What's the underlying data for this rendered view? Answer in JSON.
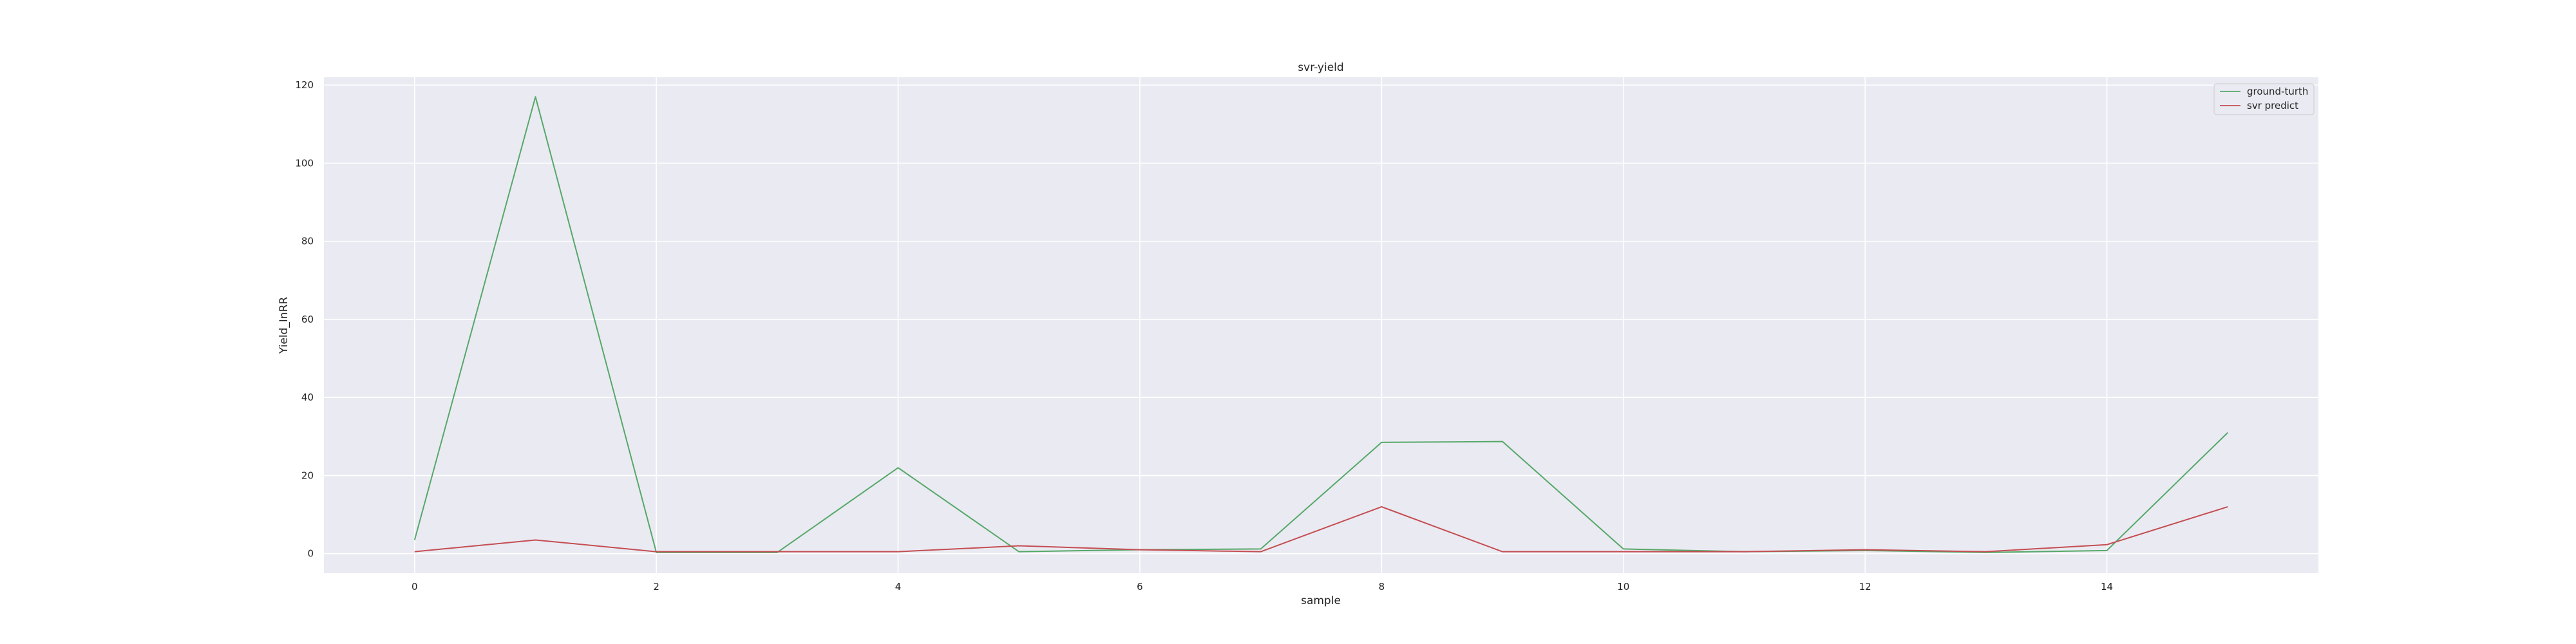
{
  "chart_data": {
    "type": "line",
    "title": "svr-yield",
    "xlabel": "sample",
    "ylabel": "Yield_InRR",
    "x": [
      0,
      1,
      2,
      3,
      4,
      5,
      6,
      7,
      8,
      9,
      10,
      11,
      12,
      13,
      14,
      15
    ],
    "xlim": [
      -0.75,
      15.75
    ],
    "ylim": [
      -5,
      122
    ],
    "xticks": [
      "0",
      "2",
      "4",
      "6",
      "8",
      "10",
      "12",
      "14"
    ],
    "yticks": [
      "0",
      "20",
      "40",
      "60",
      "80",
      "100",
      "120"
    ],
    "grid": true,
    "legend_position": "top-right",
    "background_color": "#eaeaf2",
    "series": [
      {
        "name": "ground-turth",
        "color": "#55a868",
        "values": [
          3.5,
          117.0,
          0.3,
          0.3,
          22.0,
          0.5,
          1.0,
          1.2,
          28.5,
          28.7,
          1.2,
          0.5,
          0.8,
          0.3,
          0.8,
          31.0
        ]
      },
      {
        "name": "svr predict",
        "color": "#c44e52",
        "values": [
          0.5,
          3.5,
          0.5,
          0.5,
          0.5,
          2.0,
          1.0,
          0.5,
          12.0,
          0.5,
          0.5,
          0.5,
          1.0,
          0.5,
          2.3,
          12.0
        ]
      }
    ]
  }
}
